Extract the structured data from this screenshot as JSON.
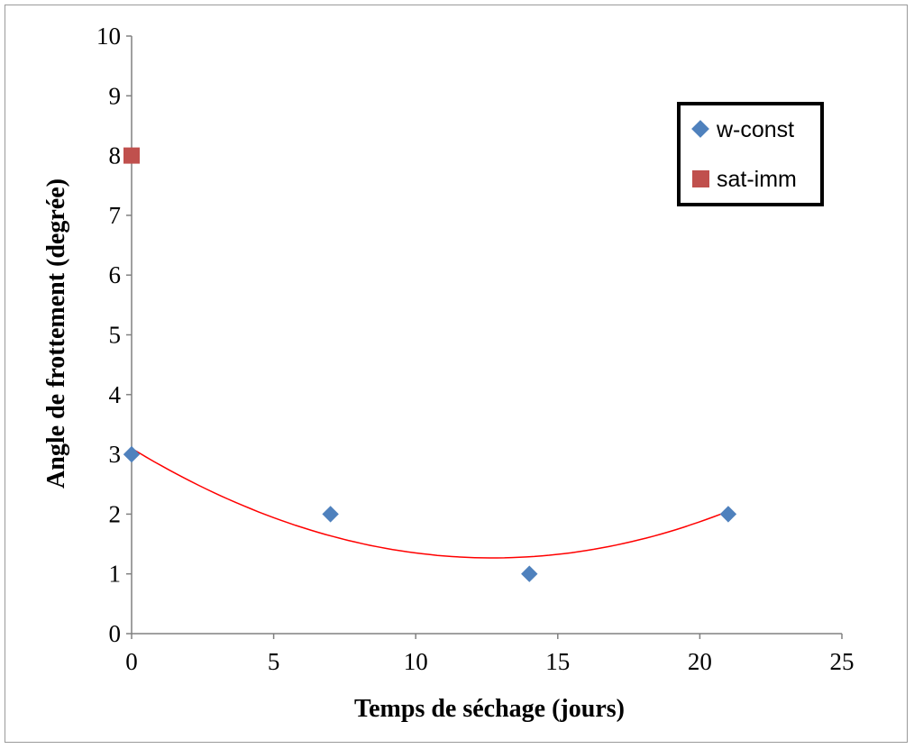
{
  "chart_data": {
    "type": "scatter",
    "xlabel": "Temps de séchage (jours)",
    "ylabel": "Angle  de frottement (degrée)",
    "xlim": [
      0,
      25
    ],
    "ylim": [
      0,
      10
    ],
    "x_ticks": [
      "0",
      "5",
      "10",
      "15",
      "20",
      "25"
    ],
    "y_ticks": [
      "0",
      "1",
      "2",
      "3",
      "4",
      "5",
      "6",
      "7",
      "8",
      "9",
      "10"
    ],
    "grid": false,
    "legend_position": "top-right",
    "series": [
      {
        "name": "w-const",
        "marker": "diamond",
        "color": "#4f81bd",
        "points": [
          {
            "x": 0,
            "y": 3
          },
          {
            "x": 7,
            "y": 2
          },
          {
            "x": 14,
            "y": 1
          },
          {
            "x": 21,
            "y": 2
          }
        ]
      },
      {
        "name": "sat-imm",
        "marker": "square",
        "color": "#c0504d",
        "points": [
          {
            "x": 0,
            "y": 8
          }
        ]
      }
    ],
    "trendline": {
      "type": "polynomial-2",
      "series": "w-const",
      "color": "#ff0000",
      "x_range": [
        0,
        21
      ],
      "coefficients": [
        0.01136,
        -0.2886,
        3.1
      ]
    }
  }
}
